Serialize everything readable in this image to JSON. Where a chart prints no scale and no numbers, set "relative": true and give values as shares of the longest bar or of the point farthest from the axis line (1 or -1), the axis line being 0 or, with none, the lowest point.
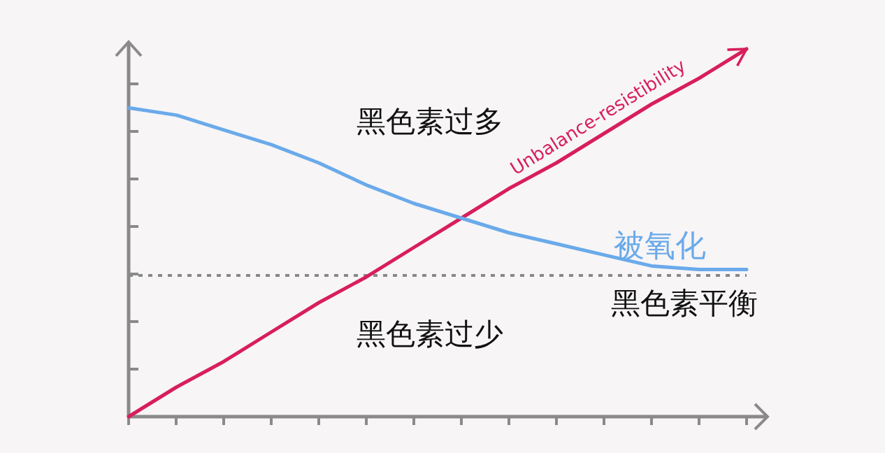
{
  "chart_data": {
    "type": "line",
    "relative": true,
    "marker": "none",
    "line_style": "solid",
    "categories": [
      null,
      null,
      null,
      null,
      null,
      null,
      null,
      null,
      null,
      null,
      null,
      null,
      null,
      null
    ],
    "series": [
      {
        "name": "Unbalance-resistibility",
        "color": "#d81e5b",
        "values": [
          0,
          0.08,
          0.15,
          0.23,
          0.31,
          0.38,
          0.46,
          0.54,
          0.62,
          0.69,
          0.77,
          0.85,
          0.92,
          1
        ]
      },
      {
        "name": "被氧化",
        "color": "#6aaaea",
        "values": [
          0.84,
          0.82,
          0.78,
          0.74,
          0.69,
          0.63,
          0.58,
          0.54,
          0.5,
          0.47,
          0.44,
          0.41,
          0.4,
          0.4
        ]
      }
    ],
    "ref_lines": [
      {
        "axis": "y",
        "value": 0.384,
        "label": "黑色素平衡",
        "color": "#888888",
        "line_style": "dotted"
      }
    ],
    "annotations": [
      "黑色素过多",
      "黑色素过少"
    ]
  }
}
